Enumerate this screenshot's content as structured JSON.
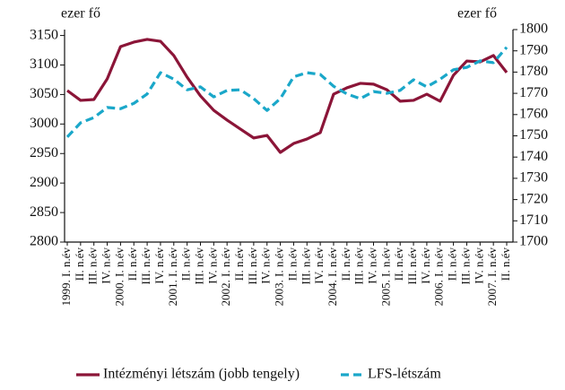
{
  "chart_data": {
    "type": "line",
    "y_label": "ezer fő",
    "y2_label": "ezer fő",
    "categories": [
      "1999. I. n.év",
      "II. n.év",
      "III. n.év",
      "IV. n.év",
      "2000. I. n.év",
      "II. n.év",
      "III. n.év",
      "IV. n.év",
      "2001. I. n.év",
      "II. n.év",
      "III. n.év",
      "IV. n.év",
      "2002. I. n.év",
      "II. n.év",
      "III. n.év",
      "IV. n.év",
      "2003. I. n.év",
      "II. n.év",
      "III. n.év",
      "IV. n.év",
      "2004. I. n.év",
      "II. n.év",
      "III. n.év",
      "IV. n.év",
      "2005. I. n.év",
      "II. n.év",
      "III. n.év",
      "IV. n.év",
      "2006. I. n.év",
      "II. n.év",
      "III. n.év",
      "IV. n.év",
      "2007. I. n.év",
      "II. n.év"
    ],
    "series": [
      {
        "name": "Intézményi létszám (jobb tengely)",
        "color": "#8b1538",
        "axis": "y2",
        "dash": false,
        "values": [
          1771.3,
          1766.7,
          1767.1,
          1776.8,
          1792,
          1794.1,
          1795.4,
          1794.5,
          1787.8,
          1777.6,
          1768.8,
          1762,
          1757.4,
          1753.2,
          1749,
          1750.2,
          1742.2,
          1746.4,
          1748.5,
          1751.5,
          1769.6,
          1772.6,
          1774.7,
          1774.3,
          1771.7,
          1766.3,
          1766.7,
          1769.6,
          1766.3,
          1778.5,
          1785.2,
          1784.8,
          1787.8,
          1779.8
        ]
      },
      {
        "name": "LFS-létszám",
        "color": "#1aa7c9",
        "dash": true,
        "values": [
          2978,
          3002,
          3011,
          3028,
          3026,
          3035,
          3051,
          3087,
          3076,
          3058,
          3063,
          3046,
          3057,
          3058,
          3043,
          3023,
          3043,
          3080,
          3087,
          3084,
          3064,
          3051,
          3043,
          3055,
          3052,
          3057,
          3075,
          3063,
          3076,
          3092,
          3096,
          3107,
          3104,
          3130
        ]
      }
    ],
    "ylim": [
      2800,
      3160
    ],
    "yticks": [
      2800,
      2850,
      2900,
      2950,
      3000,
      3050,
      3100,
      3150
    ],
    "y2lim": [
      1700,
      1800
    ],
    "y2ticks": [
      1700,
      1710,
      1720,
      1730,
      1740,
      1750,
      1760,
      1770,
      1780,
      1790,
      1800
    ],
    "legend": "bottom"
  }
}
